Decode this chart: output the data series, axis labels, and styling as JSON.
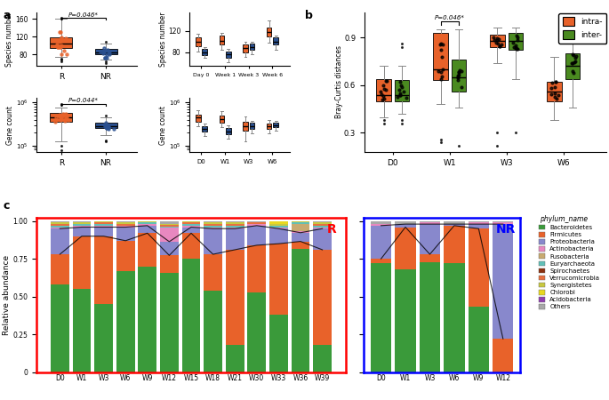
{
  "panel_a": {
    "species_RNR": {
      "R": {
        "median": 105,
        "q1": 95,
        "q3": 118,
        "whislo": 75,
        "whishi": 160,
        "fliers": [
          65,
          68,
          70,
          160,
          162
        ]
      },
      "NR": {
        "median": 85,
        "q1": 80,
        "q3": 92,
        "whislo": 68,
        "whishi": 105,
        "fliers": [
          62,
          65,
          108
        ]
      }
    },
    "species_time": {
      "Day 0": {
        "R": {
          "median": 100,
          "q1": 92,
          "q3": 108,
          "whislo": 82,
          "whishi": 114
        },
        "NR": {
          "median": 80,
          "q1": 75,
          "q3": 86,
          "whislo": 70,
          "whishi": 90
        }
      },
      "Week 1": {
        "R": {
          "median": 102,
          "q1": 94,
          "q3": 112,
          "whislo": 84,
          "whishi": 116
        },
        "NR": {
          "median": 76,
          "q1": 70,
          "q3": 82,
          "whislo": 62,
          "whishi": 86
        }
      },
      "Week 3": {
        "R": {
          "median": 88,
          "q1": 80,
          "q3": 94,
          "whislo": 72,
          "whishi": 99
        },
        "NR": {
          "median": 90,
          "q1": 84,
          "q3": 96,
          "whislo": 76,
          "whishi": 100
        }
      },
      "Week 6": {
        "R": {
          "median": 118,
          "q1": 110,
          "q3": 126,
          "whislo": 98,
          "whishi": 140
        },
        "NR": {
          "median": 100,
          "q1": 94,
          "q3": 108,
          "whislo": 85,
          "whishi": 112
        }
      }
    },
    "gene_RNR": {
      "R": {
        "median": 5.65,
        "q1": 5.55,
        "q3": 5.75,
        "whislo": 5.1,
        "whishi": 5.88,
        "fliers": [
          4.9,
          5.0,
          5.95,
          5.97
        ]
      },
      "NR": {
        "median": 5.45,
        "q1": 5.4,
        "q3": 5.52,
        "whislo": 5.25,
        "whishi": 5.65,
        "fliers": [
          5.1,
          5.12,
          5.7
        ]
      }
    },
    "gene_time": {
      "D0": {
        "R": {
          "median": 5.65,
          "q1": 5.55,
          "q3": 5.72,
          "whislo": 5.45,
          "whishi": 5.82
        },
        "NR": {
          "median": 5.38,
          "q1": 5.32,
          "q3": 5.44,
          "whislo": 5.22,
          "whishi": 5.5
        }
      },
      "W1": {
        "R": {
          "median": 5.62,
          "q1": 5.52,
          "q3": 5.7,
          "whislo": 5.42,
          "whishi": 5.8
        },
        "NR": {
          "median": 5.33,
          "q1": 5.26,
          "q3": 5.4,
          "whislo": 5.16,
          "whishi": 5.46
        }
      },
      "W3": {
        "R": {
          "median": 5.45,
          "q1": 5.35,
          "q3": 5.55,
          "whislo": 5.1,
          "whishi": 5.68
        },
        "NR": {
          "median": 5.45,
          "q1": 5.38,
          "q3": 5.52,
          "whislo": 5.28,
          "whishi": 5.58
        }
      },
      "W6": {
        "R": {
          "median": 5.44,
          "q1": 5.38,
          "q3": 5.5,
          "whislo": 5.28,
          "whishi": 5.6
        },
        "NR": {
          "median": 5.47,
          "q1": 5.42,
          "q3": 5.52,
          "whislo": 5.35,
          "whishi": 5.58
        }
      }
    }
  },
  "panel_b": {
    "D0": {
      "intra": {
        "median": 0.54,
        "q1": 0.5,
        "q3": 0.64,
        "whislo": 0.4,
        "whishi": 0.72,
        "fliers": [
          0.36,
          0.38
        ]
      },
      "inter": {
        "median": 0.54,
        "q1": 0.5,
        "q3": 0.63,
        "whislo": 0.42,
        "whishi": 0.72,
        "fliers": [
          0.36,
          0.38,
          0.84,
          0.86
        ]
      }
    },
    "W1": {
      "intra": {
        "median": 0.7,
        "q1": 0.63,
        "q3": 0.93,
        "whislo": 0.48,
        "whishi": 0.95,
        "fliers": [
          0.24,
          0.26
        ]
      },
      "inter": {
        "median": 0.65,
        "q1": 0.56,
        "q3": 0.76,
        "whislo": 0.46,
        "whishi": 0.95,
        "fliers": [
          0.22
        ]
      }
    },
    "W3": {
      "intra": {
        "median": 0.88,
        "q1": 0.84,
        "q3": 0.92,
        "whislo": 0.74,
        "whishi": 0.96,
        "fliers": [
          0.22,
          0.3
        ]
      },
      "inter": {
        "median": 0.88,
        "q1": 0.82,
        "q3": 0.93,
        "whislo": 0.64,
        "whishi": 0.96,
        "fliers": [
          0.3
        ]
      }
    },
    "W6": {
      "intra": {
        "median": 0.56,
        "q1": 0.5,
        "q3": 0.62,
        "whislo": 0.38,
        "whishi": 0.78
      },
      "inter": {
        "median": 0.72,
        "q1": 0.64,
        "q3": 0.8,
        "whislo": 0.46,
        "whishi": 0.86
      }
    }
  },
  "panel_c_R": {
    "timepoints": [
      "D0",
      "W1",
      "W3",
      "W6",
      "W9",
      "W12",
      "W15",
      "W18",
      "W21",
      "W30",
      "W33",
      "W36",
      "W39"
    ],
    "Bacteroidetes": [
      0.58,
      0.55,
      0.45,
      0.67,
      0.7,
      0.72,
      0.75,
      0.54,
      0.18,
      0.53,
      0.38,
      0.85,
      0.18
    ],
    "Firmicutes": [
      0.2,
      0.35,
      0.45,
      0.2,
      0.22,
      0.13,
      0.17,
      0.24,
      0.63,
      0.31,
      0.47,
      0.05,
      0.63
    ],
    "Proteobacteria": [
      0.17,
      0.06,
      0.06,
      0.09,
      0.05,
      0.1,
      0.04,
      0.17,
      0.14,
      0.13,
      0.1,
      0.06,
      0.14
    ],
    "Actinobacteria": [
      0.01,
      0.01,
      0.01,
      0.01,
      0.01,
      0.1,
      0.01,
      0.01,
      0.01,
      0.01,
      0.01,
      0.01,
      0.01
    ],
    "Fusobacteria": [
      0.0,
      0.0,
      0.0,
      0.0,
      0.0,
      0.0,
      0.0,
      0.0,
      0.0,
      0.0,
      0.0,
      0.05,
      0.0
    ],
    "Euryarchaeota": [
      0.01,
      0.01,
      0.01,
      0.0,
      0.01,
      0.01,
      0.01,
      0.01,
      0.01,
      0.0,
      0.01,
      0.01,
      0.01
    ],
    "Spirochaetes": [
      0.0,
      0.0,
      0.0,
      0.0,
      0.0,
      0.0,
      0.0,
      0.0,
      0.0,
      0.0,
      0.0,
      0.0,
      0.0
    ],
    "Verrucomicrobia": [
      0.01,
      0.0,
      0.01,
      0.01,
      0.0,
      0.01,
      0.01,
      0.01,
      0.01,
      0.01,
      0.0,
      0.0,
      0.01
    ],
    "Synergistetes": [
      0.01,
      0.01,
      0.01,
      0.01,
      0.01,
      0.01,
      0.01,
      0.01,
      0.01,
      0.0,
      0.01,
      0.01,
      0.01
    ],
    "Chlorobi": [
      0.0,
      0.0,
      0.0,
      0.0,
      0.0,
      0.0,
      0.0,
      0.0,
      0.0,
      0.0,
      0.02,
      0.0,
      0.0
    ],
    "Acidobacteria": [
      0.0,
      0.0,
      0.0,
      0.0,
      0.0,
      0.0,
      0.0,
      0.0,
      0.0,
      0.0,
      0.0,
      0.0,
      0.0
    ],
    "Others": [
      0.01,
      0.01,
      0.0,
      0.01,
      0.0,
      0.02,
      0.0,
      0.01,
      0.01,
      0.01,
      0.0,
      0.0,
      0.01
    ]
  },
  "panel_c_NR": {
    "timepoints": [
      "D0",
      "W1",
      "W3",
      "W6",
      "W9",
      "W12"
    ],
    "Bacteroidetes": [
      0.72,
      0.68,
      0.73,
      0.72,
      0.43,
      0.0
    ],
    "Firmicutes": [
      0.03,
      0.28,
      0.05,
      0.25,
      0.52,
      0.22
    ],
    "Proteobacteria": [
      0.22,
      0.02,
      0.2,
      0.01,
      0.03,
      0.76
    ],
    "Actinobacteria": [
      0.01,
      0.0,
      0.01,
      0.0,
      0.01,
      0.01
    ],
    "Fusobacteria": [
      0.0,
      0.0,
      0.0,
      0.0,
      0.0,
      0.0
    ],
    "Euryarchaeota": [
      0.0,
      0.0,
      0.0,
      0.0,
      0.0,
      0.0
    ],
    "Spirochaetes": [
      0.0,
      0.0,
      0.0,
      0.0,
      0.0,
      0.0
    ],
    "Verrucomicrobia": [
      0.0,
      0.0,
      0.0,
      0.0,
      0.0,
      0.0
    ],
    "Synergistetes": [
      0.0,
      0.0,
      0.0,
      0.0,
      0.0,
      0.0
    ],
    "Chlorobi": [
      0.0,
      0.0,
      0.0,
      0.0,
      0.0,
      0.0
    ],
    "Acidobacteria": [
      0.0,
      0.0,
      0.0,
      0.0,
      0.0,
      0.0
    ],
    "Others": [
      0.02,
      0.02,
      0.01,
      0.02,
      0.01,
      0.01
    ]
  },
  "phylum_colors": {
    "Bacteroidetes": "#3a9a3a",
    "Firmicutes": "#e8622a",
    "Proteobacteria": "#8888cc",
    "Actinobacteria": "#e888c0",
    "Fusobacteria": "#c8aa70",
    "Euryarchaeota": "#60c0b8",
    "Spirochaetes": "#8b3010",
    "Verrucomicrobia": "#e87040",
    "Synergistetes": "#c8c840",
    "Chlorobi": "#e8d820",
    "Acidobacteria": "#9040b0",
    "Others": "#a8a8a8"
  },
  "color_R": "#e8622a",
  "color_NR": "#2a5090",
  "color_intra": "#e8622a",
  "color_inter": "#4a8a20"
}
